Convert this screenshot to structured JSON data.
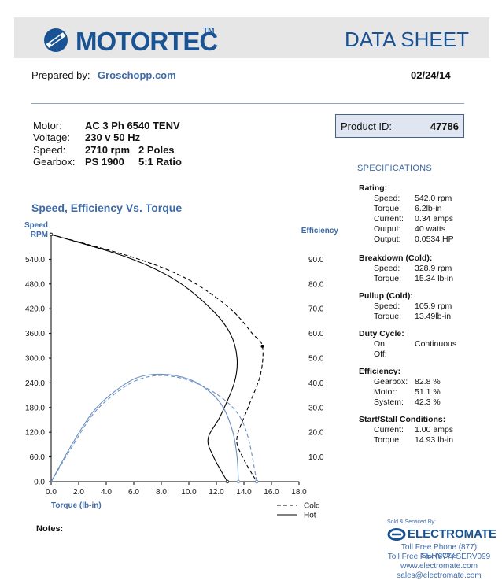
{
  "header": {
    "brand": "MOTORTEC",
    "tm": "TM",
    "doc_title": "DATA SHEET",
    "prepared_label": "Prepared by:",
    "prepared_by": "Groschopp.com",
    "date": "02/24/14"
  },
  "motor_info": {
    "motor_label": "Motor:",
    "motor": "AC 3 Ph  6540 TENV",
    "voltage_label": "Voltage:",
    "voltage": "230 v 50 Hz",
    "speed_label": "Speed:",
    "speed": "2710 rpm",
    "poles": "2 Poles",
    "gearbox_label": "Gearbox:",
    "gearbox": "PS 1900",
    "ratio": "5:1 Ratio"
  },
  "product": {
    "label": "Product ID:",
    "id": "47786"
  },
  "specs": {
    "title": "SPECIFICATIONS",
    "rating": {
      "heading": "Rating:",
      "speed_l": "Speed:",
      "speed_v": "542.0 rpm",
      "torque_l": "Torque:",
      "torque_v": "6.2lb-in",
      "current_l": "Current:",
      "current_v": "0.34 amps",
      "output_l": "Output:",
      "output_w": "40 watts",
      "output_l2": "Output:",
      "output_hp": "0.0534 HP"
    },
    "breakdown": {
      "heading": "Breakdown (Cold):",
      "speed_l": "Speed:",
      "speed_v": "328.9 rpm",
      "torque_l": "Torque:",
      "torque_v": "15.34 lb-in"
    },
    "pullup": {
      "heading": "Pullup (Cold):",
      "speed_l": "Speed:",
      "speed_v": "105.9 rpm",
      "torque_l": "Torque:",
      "torque_v": "13.49lb-in"
    },
    "duty": {
      "heading": "Duty Cycle:",
      "on_l": "On:",
      "on_v": "Continuous",
      "off_l": "Off:"
    },
    "efficiency": {
      "heading": "Efficiency:",
      "gearbox_l": "Gearbox:",
      "gearbox_v": "82.8 %",
      "motor_l": "Motor:",
      "motor_v": "51.1 %",
      "system_l": "System:",
      "system_v": "42.3 %"
    },
    "start": {
      "heading": "Start/Stall Conditions:",
      "current_l": "Current:",
      "current_v": "1.00 amps",
      "torque_l": "Torque:",
      "torque_v": "14.93 lb-in"
    }
  },
  "notes_label": "Notes:",
  "footer": {
    "sold_by": "Sold & Serviced By:",
    "company": "ELECTROMATE",
    "phone": "Toll Free Phone  (877) SERVO98",
    "fax": "Toll Free Fax  (877) SERV099",
    "web": "www.electromate.com",
    "email": "sales@electromate.com"
  },
  "chart_data": {
    "type": "line",
    "title": "Speed, Efficiency Vs. Torque",
    "xlabel": "Torque  (lb-in)",
    "ylabel_left": [
      "Speed",
      "RPM"
    ],
    "ylabel_right": "Efficiency",
    "xlim": [
      0,
      18
    ],
    "ylim_left": [
      0,
      600
    ],
    "ylim_right": [
      0,
      100
    ],
    "x_ticks": [
      "0.0",
      "2.0",
      "4.0",
      "6.0",
      "8.0",
      "10.0",
      "12.0",
      "14.0",
      "16.0",
      "18.0"
    ],
    "left_ticks": [
      "0.0",
      "60.0",
      "120.0",
      "180.0",
      "240.0",
      "300.0",
      "360.0",
      "420.0",
      "480.0",
      "540.0"
    ],
    "right_ticks": [
      "10.0",
      "20.0",
      "30.0",
      "40.0",
      "50.0",
      "60.0",
      "70.0",
      "80.0",
      "90.0"
    ],
    "legend": [
      {
        "name": "Cold",
        "style": "dashed"
      },
      {
        "name": "Hot",
        "style": "solid"
      }
    ],
    "series": [
      {
        "name": "Speed Cold",
        "axis": "left",
        "style": "dashed",
        "color": "#000000",
        "points": [
          [
            0,
            600
          ],
          [
            6.2,
            542
          ],
          [
            10,
            490
          ],
          [
            13,
            420
          ],
          [
            14.6,
            360
          ],
          [
            15.34,
            328.9
          ],
          [
            15.2,
            260
          ],
          [
            14.3,
            180
          ],
          [
            13.49,
            105.9
          ],
          [
            13.9,
            60
          ],
          [
            14.93,
            0
          ]
        ]
      },
      {
        "name": "Speed Hot",
        "axis": "left",
        "style": "solid",
        "color": "#000000",
        "points": [
          [
            0,
            600
          ],
          [
            5.5,
            545
          ],
          [
            9,
            490
          ],
          [
            11.6,
            420
          ],
          [
            13,
            360
          ],
          [
            13.5,
            300
          ],
          [
            13.3,
            240
          ],
          [
            12.3,
            160
          ],
          [
            11.4,
            105
          ],
          [
            11.8,
            60
          ],
          [
            12.8,
            0
          ]
        ]
      },
      {
        "name": "Efficiency Cold",
        "axis": "right",
        "style": "dashed",
        "color": "#6a8fc0",
        "points": [
          [
            0,
            0
          ],
          [
            1.5,
            14
          ],
          [
            3,
            27
          ],
          [
            4.5,
            35
          ],
          [
            6.2,
            41
          ],
          [
            8,
            43
          ],
          [
            10,
            41
          ],
          [
            12,
            35.5
          ],
          [
            13.49,
            28
          ],
          [
            14.3,
            18
          ],
          [
            14.93,
            0
          ]
        ]
      },
      {
        "name": "Efficiency Hot",
        "axis": "right",
        "style": "solid",
        "color": "#6a8fc0",
        "points": [
          [
            0,
            0
          ],
          [
            1.5,
            15
          ],
          [
            3,
            28
          ],
          [
            4.5,
            36
          ],
          [
            6.2,
            42
          ],
          [
            8,
            43.5
          ],
          [
            10,
            41.5
          ],
          [
            11.5,
            36.5
          ],
          [
            12.5,
            30
          ],
          [
            13.2,
            20
          ],
          [
            13.5,
            10
          ],
          [
            13.6,
            0
          ]
        ]
      }
    ],
    "markers": [
      {
        "series": "Speed Cold",
        "x": 15.34,
        "y": 328.9
      }
    ]
  }
}
